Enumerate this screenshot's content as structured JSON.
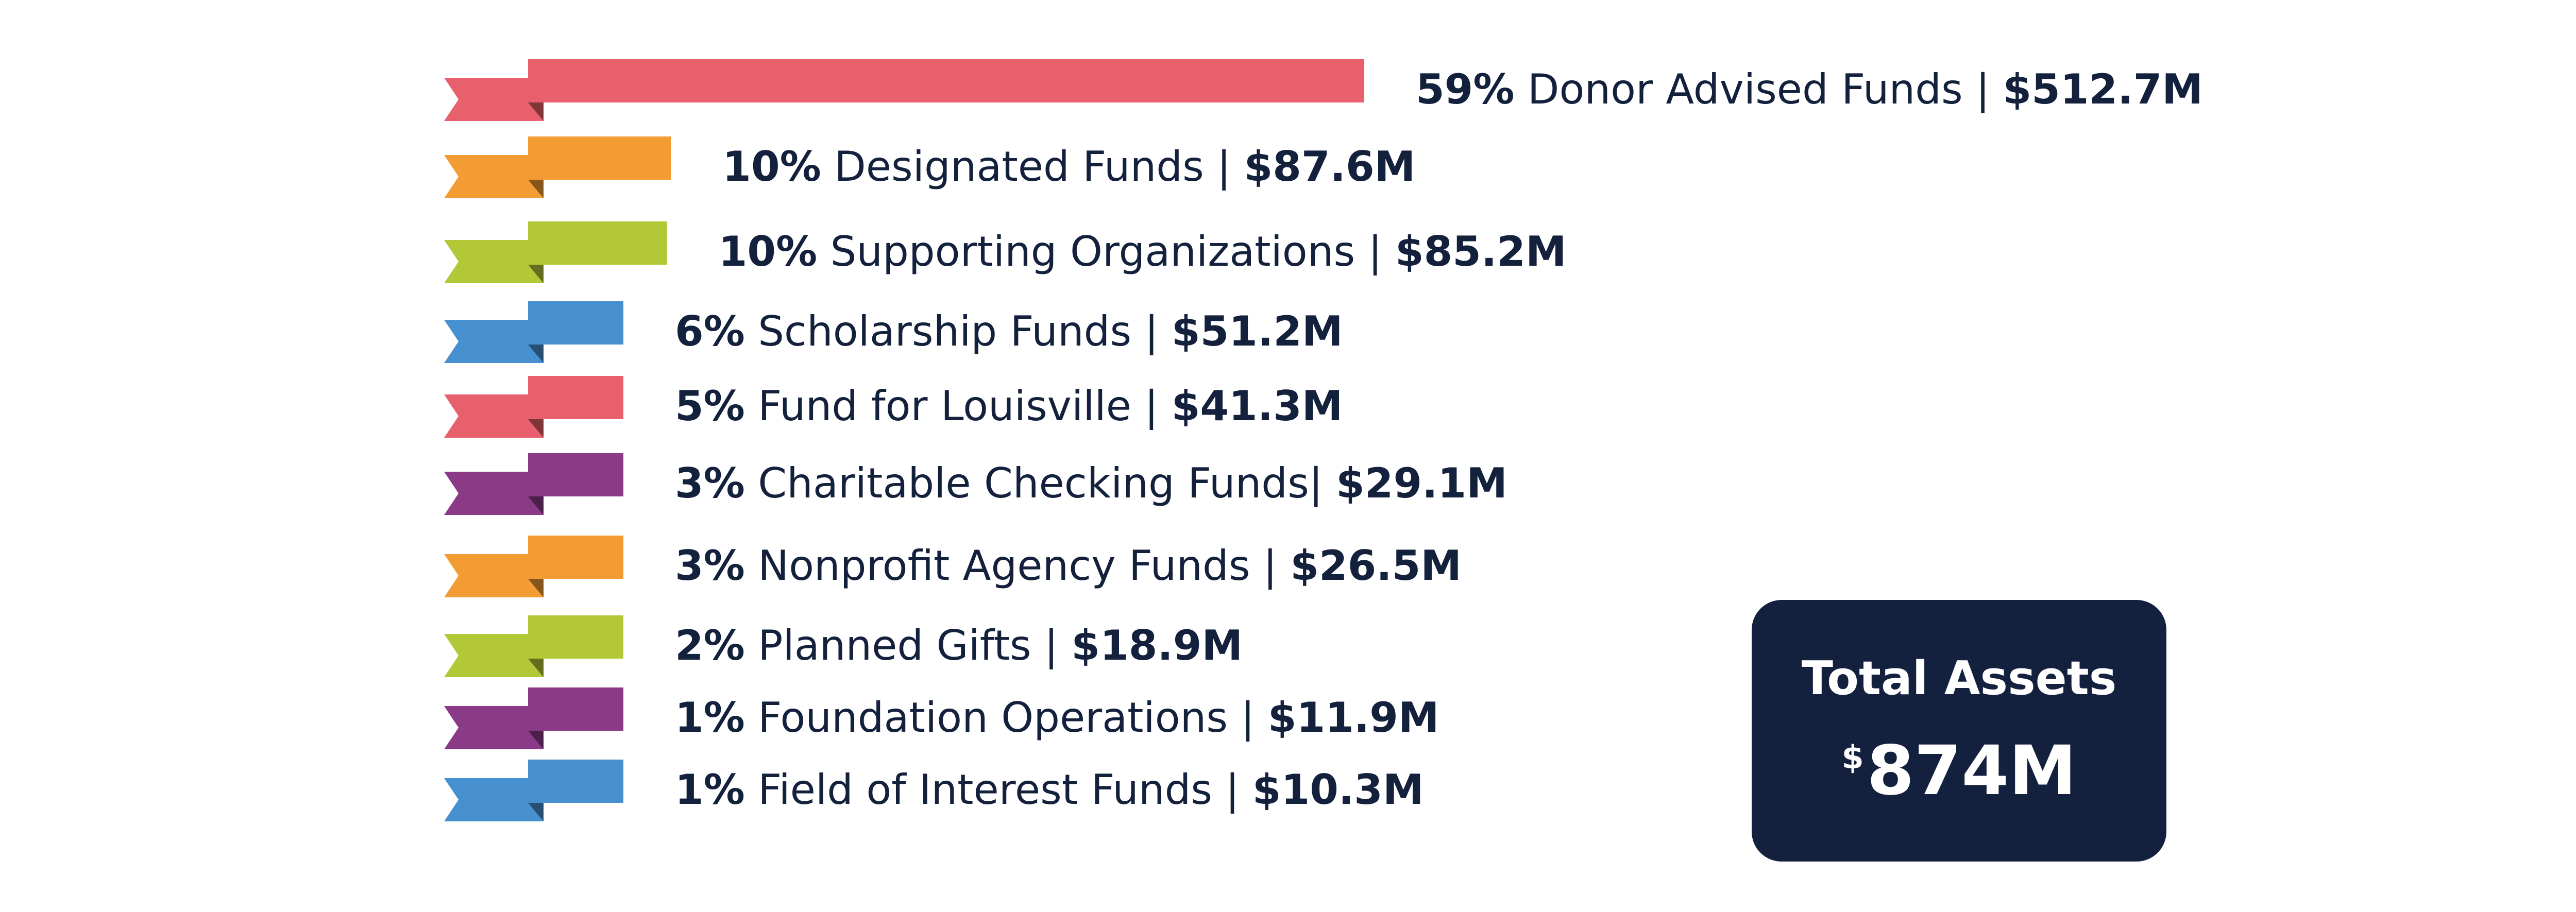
{
  "chart_data": {
    "type": "bar",
    "orientation": "horizontal",
    "categories": [
      "Donor Advised Funds",
      "Designated Funds",
      "Supporting Organizations",
      "Scholarship Funds",
      "Fund for Louisville",
      "Charitable Checking Funds",
      "Nonprofit Agency Funds",
      "Planned Gifts",
      "Foundation Operations",
      "Field of Interest Funds"
    ],
    "percent_labels": [
      "59%",
      "10%",
      "10%",
      "6%",
      "5%",
      "3%",
      "3%",
      "2%",
      "1%",
      "1%"
    ],
    "separators": [
      " | ",
      " | ",
      " | ",
      " | ",
      " | ",
      "| ",
      " | ",
      " | ",
      " | ",
      " | "
    ],
    "amount_labels": [
      "$512.7M",
      "$87.6M",
      "$85.2M",
      "$51.2M",
      "$41.3M",
      "$29.1M",
      "$26.5M",
      "$18.9M",
      "$11.9M",
      "$10.3M"
    ],
    "values": [
      512.7,
      87.6,
      85.2,
      51.2,
      41.3,
      29.1,
      26.5,
      18.9,
      11.9,
      10.3
    ],
    "colors": [
      "#e8606b",
      "#f39c33",
      "#b3c837",
      "#4690cf",
      "#e8606b",
      "#8b3a87",
      "#f39c33",
      "#b3c837",
      "#8b3a87",
      "#4690cf"
    ],
    "grid": false,
    "legend": "none"
  },
  "total": {
    "title": "Total Assets",
    "currency": "$",
    "amount": "874M"
  }
}
